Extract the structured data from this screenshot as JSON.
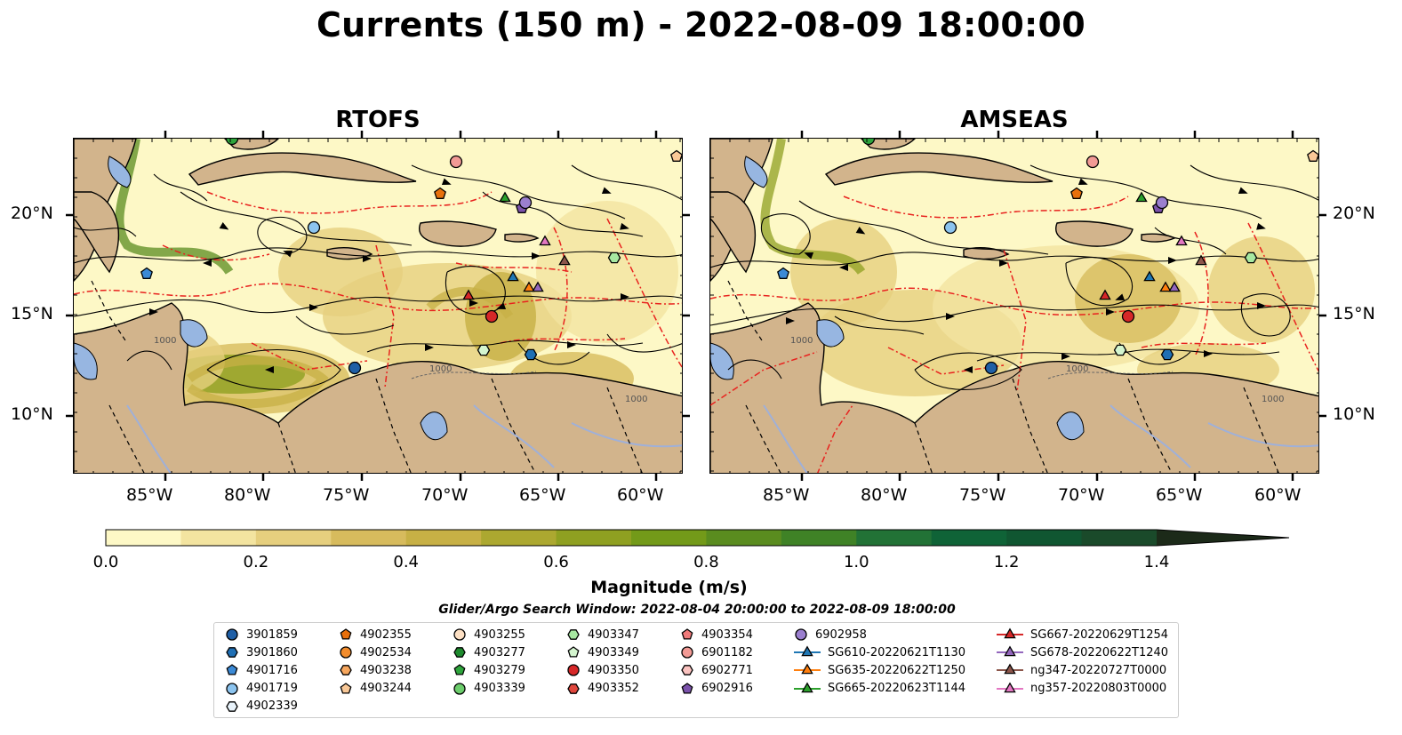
{
  "title": "Currents (150 m) - 2022-08-09 18:00:00",
  "panels": [
    {
      "title": "RTOFS"
    },
    {
      "title": "AMSEAS"
    }
  ],
  "lat_ticks": [
    "20°N",
    "15°N",
    "10°N"
  ],
  "lon_ticks": [
    "85°W",
    "80°W",
    "75°W",
    "70°W",
    "65°W",
    "60°W"
  ],
  "colorbar": {
    "label": "Magnitude (m/s)",
    "ticks": [
      "0.0",
      "0.2",
      "0.4",
      "0.6",
      "0.8",
      "1.0",
      "1.2",
      "1.4"
    ],
    "colors": [
      "#fdf8c6",
      "#f3e4a0",
      "#e6cf7e",
      "#d7bb5d",
      "#c7b045",
      "#aca830",
      "#8fa021",
      "#739a19",
      "#5a8c1f",
      "#3f8226",
      "#227236",
      "#0f6337",
      "#105631",
      "#1a4a2a",
      "#1e3a22",
      "#1c2a19"
    ]
  },
  "search_window": "Glider/Argo Search Window: 2022-08-04 20:00:00 to 2022-08-09 18:00:00",
  "legend": [
    {
      "label": "3901859",
      "marker": "circle",
      "color": "#1f5fa6"
    },
    {
      "label": "3901860",
      "marker": "hexagon",
      "color": "#1f6fb4"
    },
    {
      "label": "4901716",
      "marker": "pentagon",
      "color": "#3b8ad6"
    },
    {
      "label": "4901719",
      "marker": "circle",
      "color": "#8cc4ef"
    },
    {
      "label": "4902339",
      "marker": "hexagon",
      "color": "#e8f3fb"
    },
    {
      "label": "4902355",
      "marker": "pentagon",
      "color": "#e8700c"
    },
    {
      "label": "4902534",
      "marker": "circle",
      "color": "#f28c2c"
    },
    {
      "label": "4903238",
      "marker": "hexagon",
      "color": "#f7a75e"
    },
    {
      "label": "4903244",
      "marker": "pentagon",
      "color": "#f9c897"
    },
    {
      "label": "4903255",
      "marker": "circle",
      "color": "#fde0c4"
    },
    {
      "label": "4903277",
      "marker": "hexagon",
      "color": "#1e8a2e"
    },
    {
      "label": "4903279",
      "marker": "pentagon",
      "color": "#2ea53c"
    },
    {
      "label": "4903339",
      "marker": "circle",
      "color": "#6ccd6c"
    },
    {
      "label": "4903347",
      "marker": "hexagon",
      "color": "#a7e8a1"
    },
    {
      "label": "4903349",
      "marker": "pentagon",
      "color": "#d4f5cf"
    },
    {
      "label": "4903350",
      "marker": "circle",
      "color": "#d62728"
    },
    {
      "label": "4903352",
      "marker": "hexagon",
      "color": "#e0473d"
    },
    {
      "label": "4903354",
      "marker": "pentagon",
      "color": "#f07a7a"
    },
    {
      "label": "6901182",
      "marker": "circle",
      "color": "#f29a95"
    },
    {
      "label": "6902771",
      "marker": "hexagon",
      "color": "#fbc3c0"
    },
    {
      "label": "6902916",
      "marker": "pentagon",
      "color": "#7b52ab"
    },
    {
      "label": "6902958",
      "marker": "circle",
      "color": "#9b7fcf"
    },
    {
      "label": "SG610-20220621T1130",
      "marker": "triangle-line",
      "color": "#1f77b4"
    },
    {
      "label": "SG635-20220622T1250",
      "marker": "triangle-line",
      "color": "#ff7f0e"
    },
    {
      "label": "SG665-20220623T1144",
      "marker": "triangle-line",
      "color": "#2ca02c"
    },
    {
      "label": "SG667-20220629T1254",
      "marker": "triangle-line",
      "color": "#d62728"
    },
    {
      "label": "SG678-20220622T1240",
      "marker": "triangle-line",
      "color": "#9467bd"
    },
    {
      "label": "ng347-20220727T0000",
      "marker": "triangle-line",
      "color": "#8c564b"
    },
    {
      "label": "ng357-20220803T0000",
      "marker": "triangle-line",
      "color": "#e377c2"
    }
  ],
  "colors": {
    "land": "#d2b48c",
    "water": "#97b6e1",
    "eez": "#e8231f"
  }
}
